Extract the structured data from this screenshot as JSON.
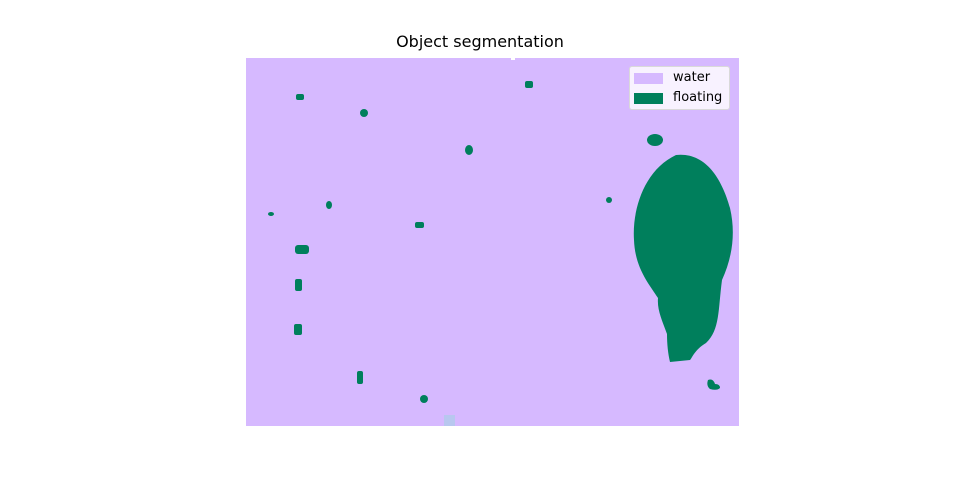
{
  "figure": {
    "title": "Object segmentation"
  },
  "legend": {
    "items": [
      {
        "label": "water",
        "color": "#d6b9ff"
      },
      {
        "label": "floating",
        "color": "#007f5c"
      }
    ]
  },
  "colors": {
    "water": "#d6b9ff",
    "floating": "#007f5c",
    "background": "#ffffff"
  }
}
